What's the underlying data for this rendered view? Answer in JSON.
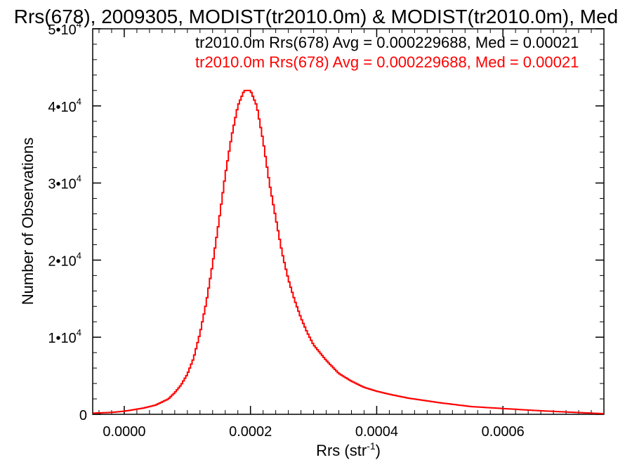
{
  "chart_data": {
    "type": "line",
    "title": "Rrs(678), 2009305, MODIST(tr2010.0m) & MODIST(tr2010.0m), Med",
    "xlabel": "Rrs (str",
    "xlabel_sup": "-1",
    "xlabel_end": ")",
    "ylabel": "Number of Observations",
    "xlim": [
      -5e-05,
      0.00076
    ],
    "ylim": [
      0,
      50000
    ],
    "xticks": [
      {
        "value": 0.0,
        "label": "0.0000"
      },
      {
        "value": 0.0002,
        "label": "0.0002"
      },
      {
        "value": 0.0004,
        "label": "0.0004"
      },
      {
        "value": 0.0006,
        "label": "0.0006"
      }
    ],
    "yticks": [
      {
        "value": 0,
        "label": "0",
        "exp": ""
      },
      {
        "value": 10000,
        "label": "1•10",
        "exp": "4"
      },
      {
        "value": 20000,
        "label": "2•10",
        "exp": "4"
      },
      {
        "value": 30000,
        "label": "3•10",
        "exp": "4"
      },
      {
        "value": 40000,
        "label": "4•10",
        "exp": "4"
      },
      {
        "value": 50000,
        "label": "5•10",
        "exp": "4"
      }
    ],
    "annotations": [
      {
        "text": "tr2010.0m Rrs(678) Avg = 0.000229688, Med = 0.00021",
        "color": "#000000"
      },
      {
        "text": "tr2010.0m Rrs(678) Avg = 0.000229688, Med = 0.00021",
        "color": "#ff0000"
      }
    ],
    "series": [
      {
        "color": "#ff0000",
        "x": [
          -5e-05,
          -2e-05,
          0.0,
          3e-05,
          5e-05,
          7e-05,
          8e-05,
          9e-05,
          0.0001,
          0.00011,
          0.00012,
          0.00013,
          0.00014,
          0.00015,
          0.00016,
          0.00017,
          0.00018,
          0.00019,
          0.0002,
          0.00021,
          0.00022,
          0.00023,
          0.00024,
          0.00025,
          0.00026,
          0.00027,
          0.00028,
          0.00029,
          0.0003,
          0.00032,
          0.00034,
          0.00036,
          0.00038,
          0.0004,
          0.00042,
          0.00045,
          0.0005,
          0.00055,
          0.0006,
          0.00065,
          0.0007,
          0.00076
        ],
        "y": [
          150,
          250,
          400,
          800,
          1200,
          2000,
          2800,
          3800,
          5200,
          7300,
          10500,
          14500,
          19500,
          25000,
          31000,
          36000,
          40000,
          42000,
          42000,
          40000,
          35500,
          30000,
          25500,
          21000,
          17500,
          14800,
          12500,
          10600,
          9000,
          7000,
          5300,
          4300,
          3500,
          3000,
          2600,
          2100,
          1500,
          1000,
          750,
          500,
          300,
          80
        ]
      }
    ]
  }
}
